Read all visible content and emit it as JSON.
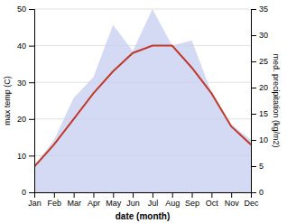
{
  "chart_data": {
    "type": "line",
    "categories": [
      "Jan",
      "Feb",
      "Mar",
      "Apr",
      "May",
      "Jun",
      "Jul",
      "Aug",
      "Sep",
      "Oct",
      "Nov",
      "Dec"
    ],
    "series": [
      {
        "type": "area",
        "axis": "y2",
        "color": "#c5cdf0",
        "values": [
          5,
          10,
          18,
          22,
          32,
          27,
          35,
          28,
          29,
          19,
          13,
          10
        ]
      },
      {
        "type": "line",
        "color": "#c0392b",
        "values": [
          7,
          13,
          20,
          27,
          33,
          38,
          40,
          40,
          34,
          27,
          18,
          13
        ]
      }
    ],
    "xlabel": "date (month)",
    "ylabel": "max temp (C)",
    "y2label": "med. precipitation (kg/m2)",
    "ylim": [
      0,
      50
    ],
    "yticks": [
      0,
      10,
      20,
      30,
      40,
      50
    ],
    "y2lim": [
      0,
      35
    ],
    "y2ticks": [
      0,
      5,
      10,
      15,
      20,
      25,
      30,
      35
    ],
    "grid": true
  }
}
